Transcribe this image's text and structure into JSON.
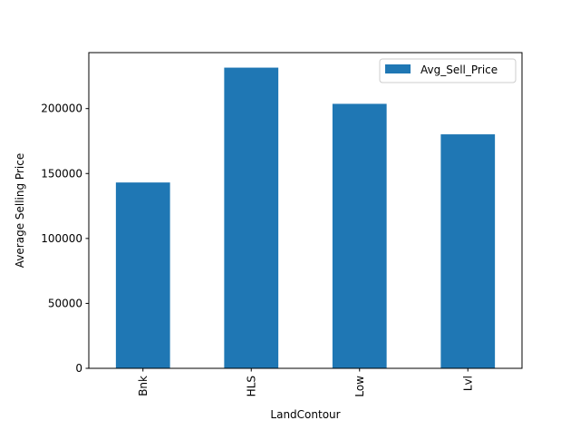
{
  "chart_data": {
    "type": "bar",
    "title": "",
    "xlabel": "LandContour",
    "ylabel": "Average Selling Price",
    "categories": [
      "Bnk",
      "HLS",
      "Low",
      "Lvl"
    ],
    "series": [
      {
        "name": "Avg_Sell_Price",
        "values": [
          143104,
          231534,
          203661,
          180184
        ],
        "color": "#1f77b4"
      }
    ],
    "ylim": [
      0,
      243100
    ],
    "yticks": [
      0,
      50000,
      100000,
      150000,
      200000
    ],
    "ytick_labels": [
      "0",
      "50000",
      "100000",
      "150000",
      "200000"
    ],
    "grid": false,
    "legend_position": "upper right"
  }
}
